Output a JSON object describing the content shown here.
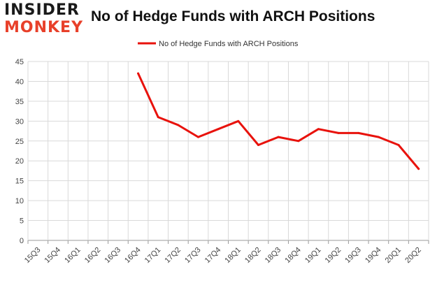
{
  "logo": {
    "line1": "INSIDER",
    "line2": "MONKEY"
  },
  "chart_data": {
    "type": "line",
    "title": "No of Hedge Funds with ARCH Positions",
    "categories": [
      "15Q3",
      "15Q4",
      "16Q1",
      "16Q2",
      "16Q3",
      "16Q4",
      "17Q1",
      "17Q2",
      "17Q3",
      "17Q4",
      "18Q1",
      "18Q2",
      "18Q3",
      "18Q4",
      "19Q1",
      "19Q2",
      "19Q3",
      "19Q4",
      "20Q1",
      "20Q2"
    ],
    "series": [
      {
        "name": "No of Hedge Funds with ARCH Positions",
        "color": "#e8120c",
        "values": [
          null,
          null,
          null,
          null,
          null,
          42,
          31,
          29,
          26,
          28,
          30,
          24,
          26,
          25,
          28,
          27,
          27,
          26,
          24,
          18
        ]
      }
    ],
    "ylim": [
      0,
      45
    ],
    "yticks": [
      0,
      5,
      10,
      15,
      20,
      25,
      30,
      35,
      40,
      45
    ],
    "grid": true,
    "legend": "top-center"
  }
}
